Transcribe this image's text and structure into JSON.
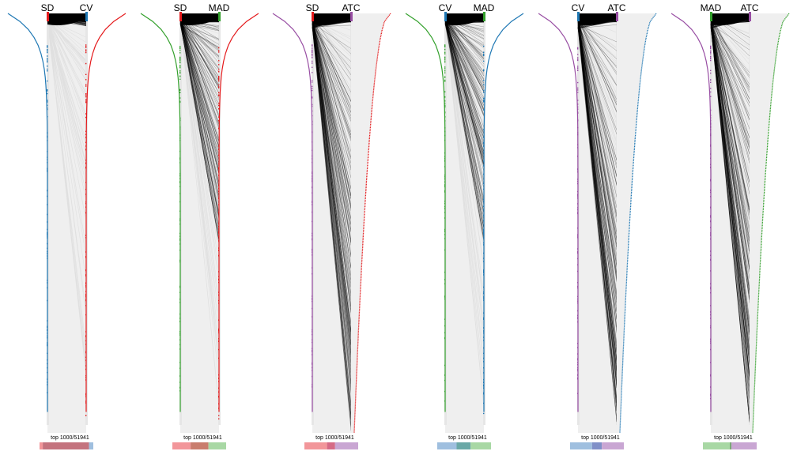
{
  "chart_data": {
    "type": "other",
    "caption_text": "top 1000/51941",
    "top_n": 1000,
    "total_n": 51941,
    "colors": {
      "SD": "#1f78b4",
      "CV": "#e41a1c",
      "MAD": "#33a02c",
      "ATC": "#984ea3",
      "link": "#000000",
      "background_link": "#e0e0e0",
      "band": "#efefef"
    },
    "panels": [
      {
        "left_method": "SD",
        "right_method": "CV",
        "left_color": "#1f78b4",
        "right_color": "#e41a1c",
        "left_tick_color": "#e41a1c",
        "right_tick_color": "#1f78b4",
        "link_spread": 0.03,
        "right_curve_fill": false,
        "overlap_bar": {
          "left_only": 0.06,
          "shared": 0.86,
          "right_only": 0.08
        },
        "bar_colors": [
          "#f2969a",
          "#c4737e",
          "#9fbfdf"
        ]
      },
      {
        "left_method": "SD",
        "right_method": "MAD",
        "left_color": "#33a02c",
        "right_color": "#e41a1c",
        "left_tick_color": "#e41a1c",
        "right_tick_color": "#33a02c",
        "link_spread": 0.55,
        "right_curve_fill": false,
        "overlap_bar": {
          "left_only": 0.34,
          "shared": 0.33,
          "right_only": 0.33
        },
        "bar_colors": [
          "#f2969a",
          "#c97d6d",
          "#a8d8a4"
        ]
      },
      {
        "left_method": "SD",
        "right_method": "ATC",
        "left_color": "#984ea3",
        "right_color": "#e41a1c",
        "left_tick_color": "#e41a1c",
        "right_tick_color": "#984ea3",
        "link_spread": 1.0,
        "right_curve_fill": true,
        "overlap_bar": {
          "left_only": 0.42,
          "shared": 0.15,
          "right_only": 0.43
        },
        "bar_colors": [
          "#f2969a",
          "#d56a86",
          "#c9a6d3"
        ]
      },
      {
        "left_method": "CV",
        "right_method": "MAD",
        "left_color": "#33a02c",
        "right_color": "#1f78b4",
        "left_tick_color": "#1f78b4",
        "right_tick_color": "#33a02c",
        "link_spread": 0.55,
        "right_curve_fill": false,
        "overlap_bar": {
          "left_only": 0.36,
          "shared": 0.26,
          "right_only": 0.38
        },
        "bar_colors": [
          "#9fbfdf",
          "#6aa8a6",
          "#a8d8a4"
        ]
      },
      {
        "left_method": "CV",
        "right_method": "ATC",
        "left_color": "#984ea3",
        "right_color": "#1f78b4",
        "left_tick_color": "#1f78b4",
        "right_tick_color": "#984ea3",
        "link_spread": 1.0,
        "right_curve_fill": true,
        "overlap_bar": {
          "left_only": 0.41,
          "shared": 0.18,
          "right_only": 0.41
        },
        "bar_colors": [
          "#9fbfdf",
          "#8090c8",
          "#c9a6d3"
        ]
      },
      {
        "left_method": "MAD",
        "right_method": "ATC",
        "left_color": "#984ea3",
        "right_color": "#33a02c",
        "left_tick_color": "#33a02c",
        "right_tick_color": "#984ea3",
        "link_spread": 1.0,
        "right_curve_fill": true,
        "overlap_bar": {
          "left_only": 0.5,
          "shared": 0.03,
          "right_only": 0.47
        },
        "bar_colors": [
          "#a8d8a4",
          "#7aa876",
          "#c9a6d3"
        ]
      }
    ]
  }
}
